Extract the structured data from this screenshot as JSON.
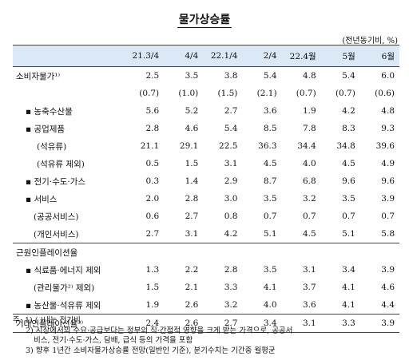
{
  "title": "물가상승률",
  "unit": "(전년동기비, %)",
  "columns": [
    "21.3/4",
    "4/4",
    "22.1/4",
    "2/4",
    "22.4월",
    "5월",
    "6월"
  ],
  "rows": [
    {
      "label": "소비자물가¹⁾",
      "values": [
        "2.5",
        "3.5",
        "3.8",
        "5.4",
        "4.8",
        "5.4",
        "6.0"
      ]
    },
    {
      "label": "",
      "values": [
        "(0.7)",
        "(1.0)",
        "(1.5)",
        "(2.1)",
        "(0.7)",
        "(0.7)",
        "(0.6)"
      ]
    },
    {
      "label": "▪ 농축수산물",
      "values": [
        "5.6",
        "5.2",
        "2.7",
        "3.6",
        "1.9",
        "4.2",
        "4.8"
      ]
    },
    {
      "label": "▪ 공업제품",
      "values": [
        "2.8",
        "4.6",
        "5.4",
        "8.5",
        "7.8",
        "8.3",
        "9.3"
      ]
    },
    {
      "label": "(석유류)",
      "values": [
        "21.1",
        "29.1",
        "22.5",
        "36.3",
        "34.4",
        "34.8",
        "39.6"
      ]
    },
    {
      "label": "(석유류 제외)",
      "values": [
        "0.5",
        "1.5",
        "3.1",
        "4.5",
        "4.0",
        "4.5",
        "4.9"
      ]
    },
    {
      "label": "▪ 전기·수도·가스",
      "values": [
        "0.3",
        "1.4",
        "2.9",
        "8.7",
        "6.8",
        "9.6",
        "9.6"
      ]
    },
    {
      "label": "▪ 서비스",
      "values": [
        "2.0",
        "2.8",
        "3.0",
        "3.5",
        "3.2",
        "3.5",
        "3.9"
      ]
    },
    {
      "label": "(공공서비스)",
      "values": [
        "0.6",
        "2.7",
        "0.8",
        "0.7",
        "0.7",
        "0.7",
        "0.7"
      ]
    },
    {
      "label": "(개인서비스)",
      "values": [
        "2.7",
        "3.1",
        "4.2",
        "5.1",
        "4.5",
        "5.1",
        "5.8"
      ]
    },
    {
      "label": "근원인플레이션율",
      "values": [
        "",
        "",
        "",
        "",
        "",
        "",
        ""
      ]
    },
    {
      "label": "▪ 식료품·에너지 제외",
      "values": [
        "1.3",
        "2.2",
        "2.8",
        "3.5",
        "3.1",
        "3.4",
        "3.9"
      ]
    },
    {
      "label": "(관리물가²⁾ 제외)",
      "values": [
        "1.5",
        "2.1",
        "3.3",
        "4.1",
        "3.7",
        "4.1",
        "4.6"
      ]
    },
    {
      "label": "▪ 농산물·석유류 제외",
      "values": [
        "1.9",
        "2.6",
        "3.2",
        "4.0",
        "3.6",
        "4.1",
        "4.4"
      ]
    },
    {
      "label": "기대인플레이션율³⁾",
      "values": [
        "2.4",
        "2.6",
        "2.7",
        "3.4",
        "3.1",
        "3.3",
        "3.9"
      ]
    }
  ],
  "notes": [
    "주: 1) (  )내는 전기비",
    "2) 시장에서의 수요·공급보다는 정부의 직·간접적 영향을 크게 받는 가격으로, 공공서",
    "비스, 전기·수도·가스, 담배, 급식 등의 가격을 포함",
    "3) 향후 1년간 소비자물가상승률 전망(일반인 기준), 분기수치는 기간중 월평균"
  ]
}
